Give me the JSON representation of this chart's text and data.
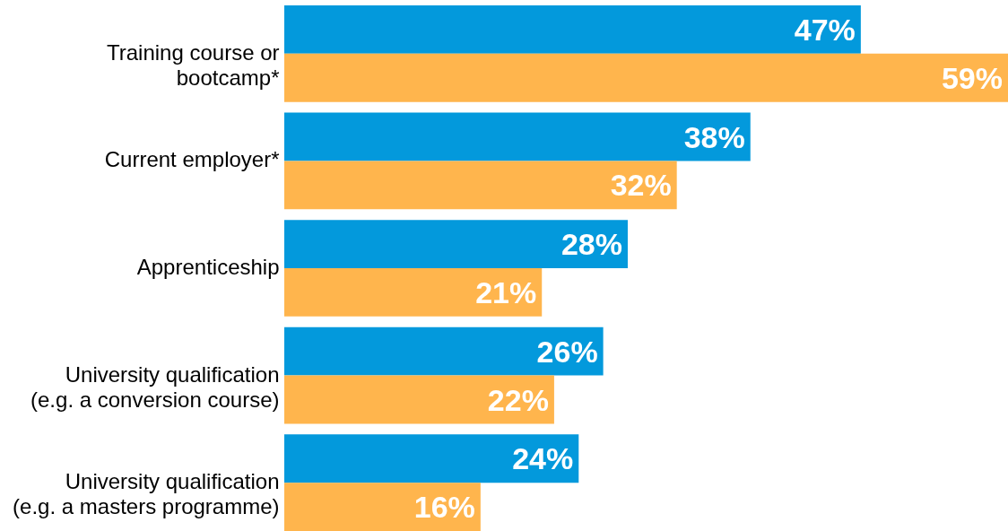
{
  "chart_data": {
    "type": "bar",
    "orientation": "horizontal",
    "categories": [
      "Training course or\nbootcamp*",
      "Current employer*",
      "Apprenticeship",
      "University qualification\n(e.g. a conversion course)",
      "University qualification\n(e.g. a masters programme)"
    ],
    "series": [
      {
        "color": "#0399dc",
        "values": [
          47,
          38,
          28,
          26,
          24
        ],
        "value_labels": [
          "47%",
          "38%",
          "28%",
          "26%",
          "24%"
        ]
      },
      {
        "color": "#ffb54d",
        "values": [
          59,
          32,
          21,
          22,
          16
        ],
        "value_labels": [
          "59%",
          "32%",
          "21%",
          "22%",
          "16%"
        ]
      }
    ],
    "data_labels": false
  }
}
